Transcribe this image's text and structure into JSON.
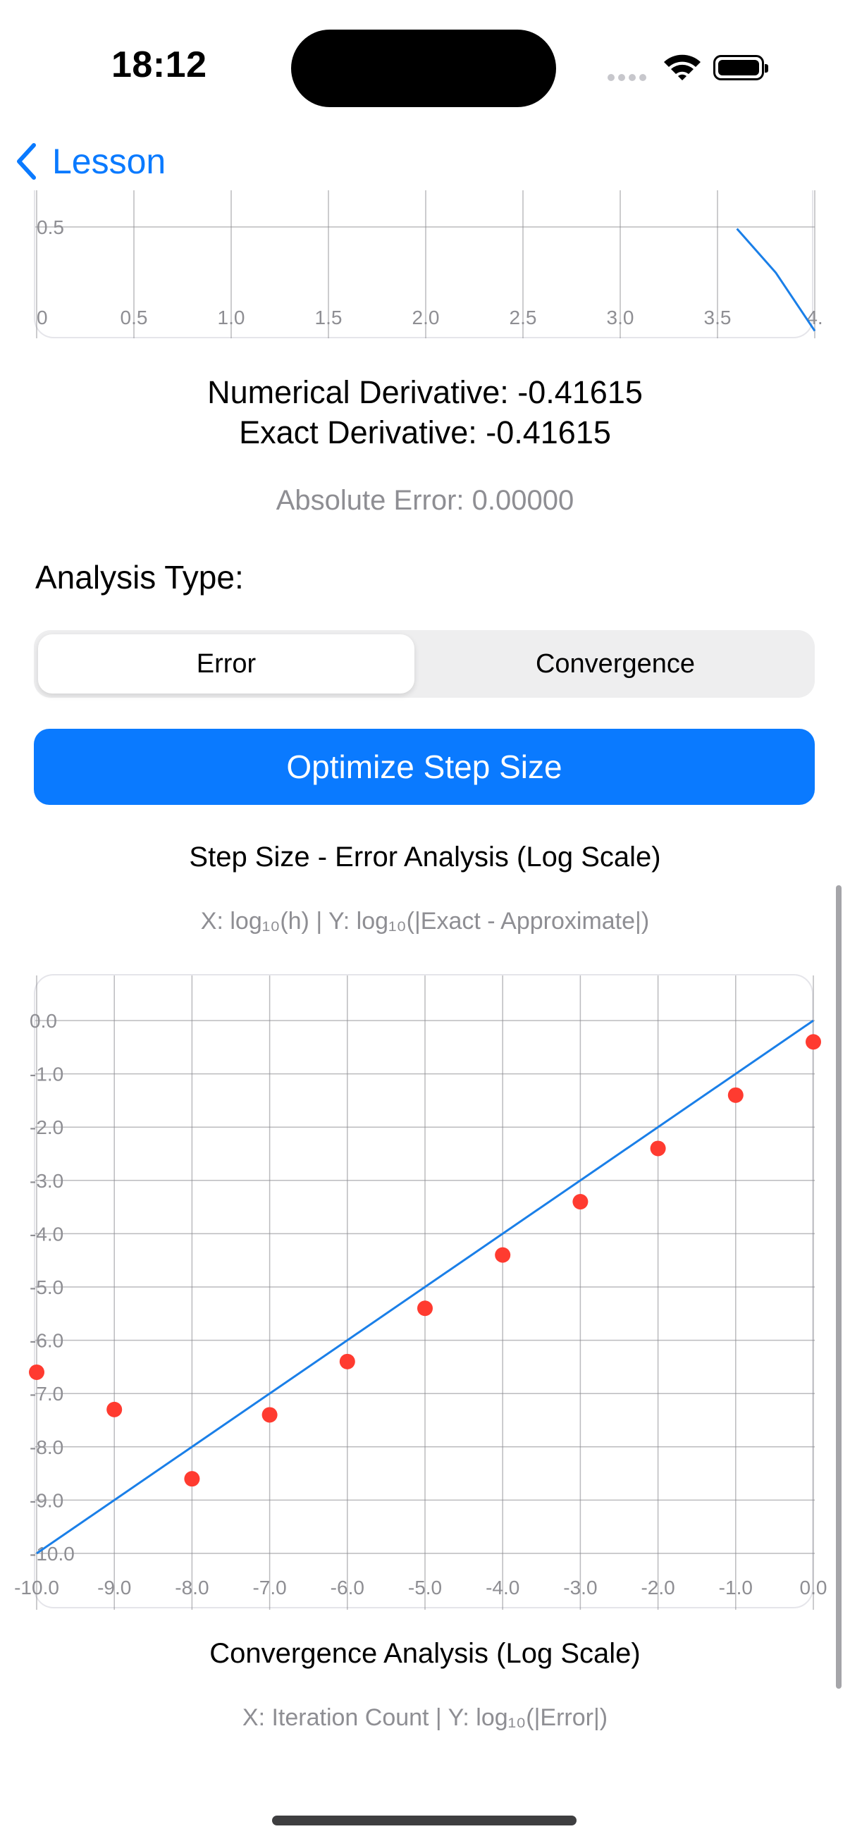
{
  "status_bar": {
    "time": "18:12"
  },
  "nav": {
    "back_label": "Lesson"
  },
  "function_plot": {
    "x_ticks": [
      "0",
      "0.5",
      "1.0",
      "1.5",
      "2.0",
      "2.5",
      "3.0",
      "3.5",
      "4."
    ],
    "y_tick_visible": "0.5"
  },
  "results": {
    "numerical": "Numerical Derivative: -0.41615",
    "exact": "Exact Derivative: -0.41615",
    "absolute_error": "Absolute Error: 0.00000"
  },
  "analysis": {
    "label": "Analysis Type:",
    "options": [
      "Error",
      "Convergence"
    ],
    "selected": "Error"
  },
  "optimize_button": "Optimize Step Size",
  "error_chart": {
    "title": "Step Size - Error Analysis (Log Scale)",
    "subtitle": "X: log₁₀(h) | Y: log₁₀(|Exact - Approximate|)"
  },
  "convergence_chart": {
    "title": "Convergence Analysis (Log Scale)",
    "subtitle": "X: Iteration Count | Y: log₁₀(|Error|)"
  },
  "colors": {
    "accent": "#0a7aff",
    "point": "#ff3b30",
    "line": "#1a7fe8",
    "grid": "#8e8e93"
  },
  "chart_data": [
    {
      "type": "line",
      "xlim": [
        0,
        4
      ],
      "x_tick_labels": [
        "0",
        "0.5",
        "1.0",
        "1.5",
        "2.0",
        "2.5",
        "3.0",
        "3.5",
        "4."
      ],
      "y_tick_labels": [
        "0.5"
      ],
      "series": [
        {
          "x": [
            3.6,
            3.8,
            4.0
          ],
          "y": [
            0.49,
            0.24,
            -0.09
          ]
        }
      ]
    },
    {
      "type": "scatter",
      "title": "Step Size - Error Analysis (Log Scale)",
      "subtitle": "X: log₁₀(h) | Y: log₁₀(|Exact - Approximate|)",
      "xlim": [
        -10,
        0
      ],
      "ylim": [
        -10,
        0
      ],
      "x_tick_labels": [
        "-10.0",
        "-9.0",
        "-8.0",
        "-7.0",
        "-6.0",
        "-5.0",
        "-4.0",
        "-3.0",
        "-2.0",
        "-1.0",
        "0.0"
      ],
      "y_tick_labels": [
        "0.0",
        "-1.0",
        "-2.0",
        "-3.0",
        "-4.0",
        "-5.0",
        "-6.0",
        "-7.0",
        "-8.0",
        "-9.0",
        "-10.0"
      ],
      "points": {
        "x": [
          -10,
          -9,
          -8,
          -7,
          -6,
          -5,
          -4,
          -3,
          -2,
          -1,
          0
        ],
        "y": [
          -6.6,
          -7.3,
          -8.6,
          -7.4,
          -6.4,
          -5.4,
          -4.4,
          -3.4,
          -2.4,
          -1.4,
          -0.4
        ]
      },
      "reference_line": {
        "x": [
          -10,
          0
        ],
        "y": [
          -10,
          0
        ]
      }
    }
  ]
}
